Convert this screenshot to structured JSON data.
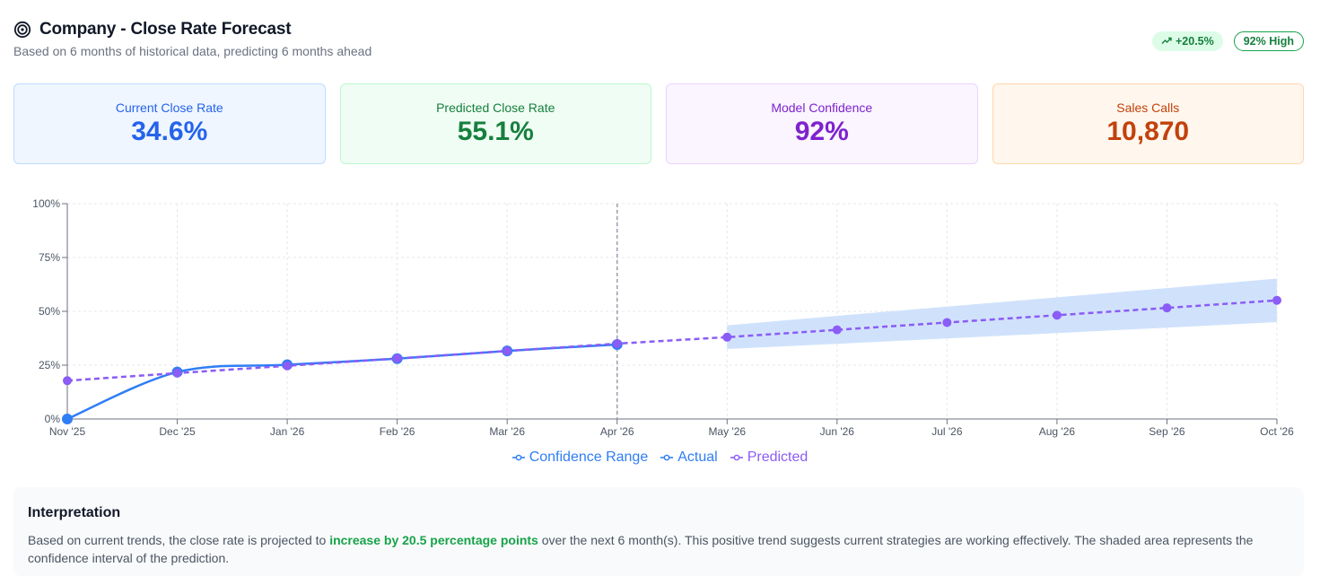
{
  "header": {
    "title": "Company - Close Rate Forecast",
    "subtitle": "Based on 6 months of historical data, predicting 6 months ahead",
    "icon": "target-icon"
  },
  "badges": {
    "trend": "+20.5%",
    "trend_icon": "trending-up-icon",
    "confidence": "92% High"
  },
  "cards": [
    {
      "label": "Current Close Rate",
      "value": "34.6%",
      "color": "#2563eb"
    },
    {
      "label": "Predicted Close Rate",
      "value": "55.1%",
      "color": "#15803d"
    },
    {
      "label": "Model Confidence",
      "value": "92%",
      "color": "#7e22ce"
    },
    {
      "label": "Sales Calls",
      "value": "10,870",
      "color": "#c2410c"
    }
  ],
  "chart_data": {
    "type": "line",
    "categories": [
      "Nov '25",
      "Dec '25",
      "Jan '26",
      "Feb '26",
      "Mar '26",
      "Apr '26",
      "May '26",
      "Jun '26",
      "Jul '26",
      "Aug '26",
      "Sep '26",
      "Oct '26"
    ],
    "y_ticks": [
      "0%",
      "25%",
      "50%",
      "75%",
      "100%"
    ],
    "ylim": [
      0,
      100
    ],
    "grid": true,
    "forecast_start": "Apr '26",
    "series": [
      {
        "name": "Actual",
        "color": "#2f7ef5",
        "values": [
          0,
          21.8,
          25.2,
          28.0,
          31.6,
          34.6,
          null,
          null,
          null,
          null,
          null,
          null
        ]
      },
      {
        "name": "Predicted",
        "color": "#8b5cf6",
        "dashed": true,
        "values": [
          17.8,
          21.3,
          24.7,
          28.1,
          31.6,
          35.0,
          38.0,
          41.4,
          44.8,
          48.2,
          51.6,
          55.1
        ]
      },
      {
        "name": "Confidence Range",
        "color": "#2f7ef5",
        "fill": "#d0e2fb",
        "lower": [
          null,
          null,
          null,
          null,
          null,
          null,
          32.5,
          34.9,
          37.4,
          39.9,
          42.4,
          45.0
        ],
        "upper": [
          null,
          null,
          null,
          null,
          null,
          null,
          43.5,
          47.9,
          52.2,
          56.5,
          60.8,
          65.2
        ]
      }
    ],
    "legend": [
      "Confidence Range",
      "Actual",
      "Predicted"
    ],
    "legend_position": "bottom-center"
  },
  "interpretation": {
    "title": "Interpretation",
    "text_before": "Based on current trends, the close rate is projected to ",
    "highlight": "increase by 20.5 percentage points",
    "text_after": " over the next 6 month(s). This positive trend suggests current strategies are working effectively. The shaded area represents the confidence interval of the prediction."
  }
}
